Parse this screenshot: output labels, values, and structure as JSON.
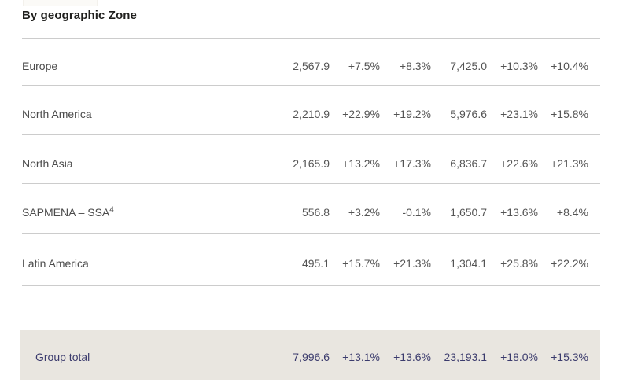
{
  "page": {
    "title": "By geographic Zone"
  },
  "table": {
    "rows": [
      {
        "label": "Europe",
        "sup": "",
        "values": [
          "2,567.9",
          "+7.5%",
          "+8.3%",
          "7,425.0",
          "+10.3%",
          "+10.4%"
        ]
      },
      {
        "label": "North America",
        "sup": "",
        "values": [
          "2,210.9",
          "+22.9%",
          "+19.2%",
          "5,976.6",
          "+23.1%",
          "+15.8%"
        ]
      },
      {
        "label": "North Asia",
        "sup": "",
        "values": [
          "2,165.9",
          "+13.2%",
          "+17.3%",
          "6,836.7",
          "+22.6%",
          "+21.3%"
        ]
      },
      {
        "label": "SAPMENA – SSA",
        "sup": "4",
        "values": [
          "556.8",
          "+3.2%",
          "-0.1%",
          "1,650.7",
          "+13.6%",
          "+8.4%"
        ]
      },
      {
        "label": "Latin America",
        "sup": "",
        "values": [
          "495.1",
          "+15.7%",
          "+21.3%",
          "1,304.1",
          "+25.8%",
          "+22.2%"
        ]
      }
    ],
    "total": {
      "label": "Group total",
      "values": [
        "7,996.6",
        "+13.1%",
        "+13.6%",
        "23,193.1",
        "+18.0%",
        "+15.3%"
      ]
    }
  },
  "colors": {
    "accent_navy": "#3b3b6d",
    "total_row_background": "#e9e6e0",
    "divider": "#cccccc"
  }
}
